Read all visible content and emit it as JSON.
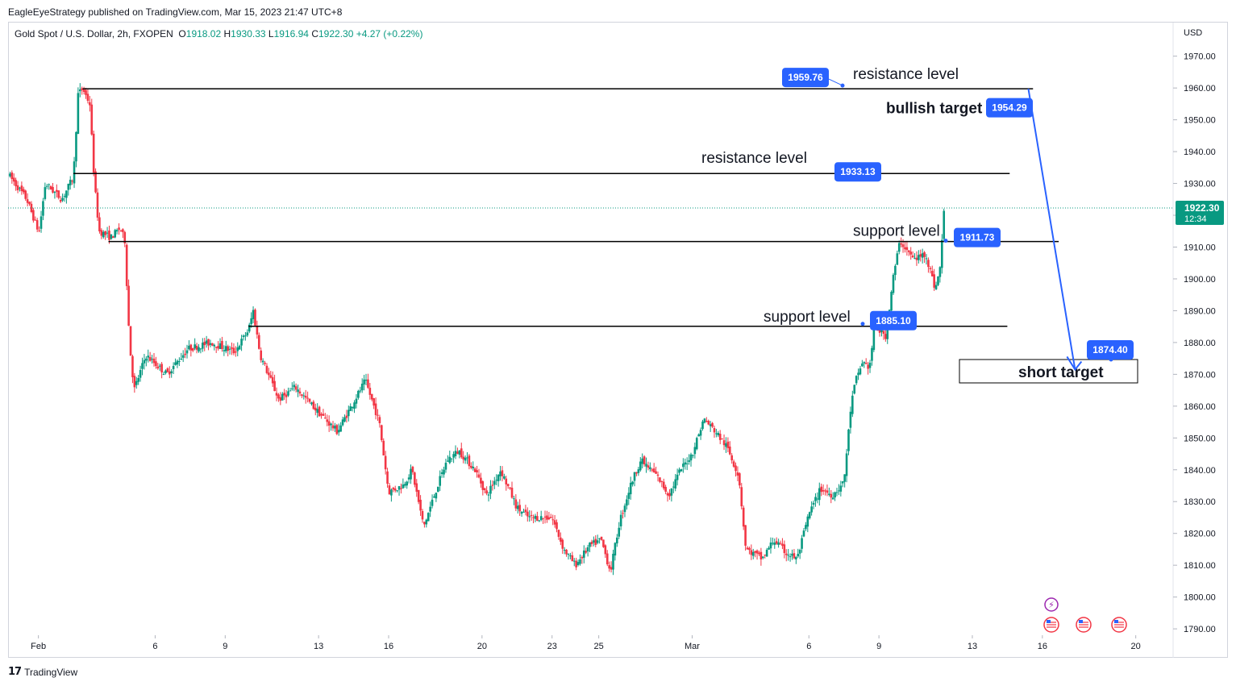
{
  "header": {
    "published": "EagleEyeStrategy published on TradingView.com, Mar 15, 2023 21:47 UTC+8",
    "symbol": "Gold Spot / U.S. Dollar, 2h, FXOPEN",
    "ohlc": [
      {
        "label": "O",
        "value": "1918.02"
      },
      {
        "label": "H",
        "value": "1930.33"
      },
      {
        "label": "L",
        "value": "1916.94"
      },
      {
        "label": "C",
        "value": "1922.30"
      }
    ],
    "change": "+4.27 (+0.22%)"
  },
  "footer": {
    "brand": "TradingView",
    "logo": "17"
  },
  "chart_data": {
    "type": "candlestick",
    "currency": "USD",
    "y_ticks": [
      "1970.00",
      "1960.00",
      "1950.00",
      "1940.00",
      "1930.00",
      "1920.00",
      "1910.00",
      "1900.00",
      "1890.00",
      "1880.00",
      "1870.00",
      "1860.00",
      "1850.00",
      "1840.00",
      "1830.00",
      "1820.00",
      "1810.00",
      "1800.00",
      "1790.00"
    ],
    "ylim": [
      1788,
      1976
    ],
    "x_ticks": [
      "Feb",
      "6",
      "9",
      "13",
      "16",
      "20",
      "23",
      "25",
      "Mar",
      "6",
      "9",
      "13",
      "16",
      "20"
    ],
    "x_tick_days": [
      0,
      5,
      8,
      12,
      15,
      19,
      22,
      24,
      28,
      33,
      36,
      40,
      43,
      47
    ],
    "xlim": [
      -1.3,
      48.6
    ],
    "price_path": [
      [
        -1.3,
        1933
      ],
      [
        -0.5,
        1925
      ],
      [
        0,
        1915
      ],
      [
        -0.2,
        1902
      ],
      [
        0.3,
        1930
      ],
      [
        1.0,
        1925
      ],
      [
        1.5,
        1932
      ],
      [
        1.7,
        1958
      ],
      [
        1.9,
        1959.8
      ],
      [
        2.2,
        1955
      ],
      [
        2.4,
        1930
      ],
      [
        2.6,
        1915
      ],
      [
        3.1,
        1913
      ],
      [
        3.5,
        1916
      ],
      [
        3.7,
        1912
      ],
      [
        3.9,
        1880
      ],
      [
        4.1,
        1865
      ],
      [
        4.6,
        1876
      ],
      [
        5.5,
        1870
      ],
      [
        6.4,
        1878
      ],
      [
        7.4,
        1880
      ],
      [
        8.4,
        1877
      ],
      [
        9.0,
        1884
      ],
      [
        9.2,
        1890
      ],
      [
        9.5,
        1876
      ],
      [
        10.3,
        1862
      ],
      [
        11.0,
        1866
      ],
      [
        12.0,
        1858
      ],
      [
        12.8,
        1852
      ],
      [
        13.4,
        1860
      ],
      [
        14.0,
        1868
      ],
      [
        14.6,
        1855
      ],
      [
        15.0,
        1833
      ],
      [
        15.6,
        1835
      ],
      [
        16.0,
        1840
      ],
      [
        16.5,
        1822
      ],
      [
        17.0,
        1833
      ],
      [
        17.5,
        1843
      ],
      [
        18.0,
        1846
      ],
      [
        18.7,
        1840
      ],
      [
        19.2,
        1832
      ],
      [
        19.8,
        1840
      ],
      [
        20.5,
        1828
      ],
      [
        21.0,
        1825
      ],
      [
        22.0,
        1825
      ],
      [
        22.5,
        1815
      ],
      [
        23.0,
        1810
      ],
      [
        23.6,
        1816
      ],
      [
        24.1,
        1818
      ],
      [
        24.5,
        1808
      ],
      [
        24.9,
        1824
      ],
      [
        25.4,
        1836
      ],
      [
        25.8,
        1843
      ],
      [
        26.5,
        1838
      ],
      [
        27.0,
        1832
      ],
      [
        27.5,
        1840
      ],
      [
        28.0,
        1845
      ],
      [
        28.5,
        1856
      ],
      [
        29.0,
        1852
      ],
      [
        29.5,
        1847
      ],
      [
        30.0,
        1838
      ],
      [
        30.3,
        1815
      ],
      [
        31.0,
        1812
      ],
      [
        31.5,
        1818
      ],
      [
        32.0,
        1814
      ],
      [
        32.5,
        1812
      ],
      [
        33.0,
        1826
      ],
      [
        33.5,
        1834
      ],
      [
        34.0,
        1832
      ],
      [
        34.5,
        1836
      ],
      [
        34.8,
        1860
      ],
      [
        35.0,
        1868
      ],
      [
        35.3,
        1874
      ],
      [
        35.6,
        1872
      ],
      [
        35.8,
        1885
      ],
      [
        36.3,
        1882
      ],
      [
        36.6,
        1900
      ],
      [
        36.9,
        1912
      ],
      [
        37.5,
        1906
      ],
      [
        38.0,
        1908
      ],
      [
        38.4,
        1897
      ],
      [
        38.6,
        1902
      ],
      [
        38.8,
        1922.3
      ]
    ],
    "levels": [
      {
        "name": "resistance level",
        "value": 1959.76,
        "label": "1959.76",
        "x_start": 1.9,
        "x_end": 42.6
      },
      {
        "name": "resistance level",
        "value": 1933.13,
        "label": "1933.13",
        "x_start": 1.5,
        "x_end": 41.6
      },
      {
        "name": "support level",
        "value": 1911.73,
        "label": "1911.73",
        "x_start": 3.0,
        "x_end": 43.7
      },
      {
        "name": "support level",
        "value": 1885.1,
        "label": "1885.10",
        "x_start": 9.0,
        "x_end": 41.5
      }
    ],
    "targets": [
      {
        "name": "bullish target",
        "value": 1954.29,
        "label": "1954.29"
      },
      {
        "name": "short target",
        "value": 1874.4,
        "label": "1874.40"
      }
    ],
    "annotations": {
      "resistance_level": "resistance level",
      "support_level": "support level",
      "bullish_target": "bullish target",
      "short_target": "short target"
    },
    "last_price": {
      "value": 1922.3,
      "label": "1922.30",
      "countdown": "12:34"
    },
    "colors": {
      "up": "#089981",
      "down": "#f23645",
      "line": "#000000",
      "badge": "#2962ff",
      "arrow": "#2962ff"
    }
  }
}
